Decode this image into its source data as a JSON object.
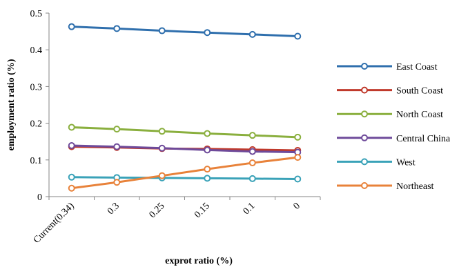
{
  "chart_data": {
    "type": "line",
    "title": "",
    "xlabel": "exprot ratio (%)",
    "ylabel": "employment ratio (%)",
    "categories": [
      "Current(0.34)",
      "0.3",
      "0.25",
      "0.15",
      "0.1",
      "0"
    ],
    "ylim": [
      0,
      0.5
    ],
    "yticks": [
      0,
      0.1,
      0.2,
      0.3,
      0.4,
      0.5
    ],
    "ytick_labels": [
      "0",
      "0.1",
      "0.2",
      "0.3",
      "0.4",
      "0.5"
    ],
    "grid": false,
    "legend_position": "right",
    "series": [
      {
        "name": "East Coast",
        "color": "#2f6fad",
        "values": [
          0.463,
          0.458,
          0.452,
          0.447,
          0.442,
          0.437
        ]
      },
      {
        "name": "South Coast",
        "color": "#c0392b",
        "values": [
          0.136,
          0.134,
          0.131,
          0.13,
          0.128,
          0.126
        ]
      },
      {
        "name": "North Coast",
        "color": "#8aaf3e",
        "values": [
          0.189,
          0.184,
          0.178,
          0.172,
          0.167,
          0.162
        ]
      },
      {
        "name": "Central China",
        "color": "#6e4a9a",
        "values": [
          0.139,
          0.136,
          0.132,
          0.127,
          0.123,
          0.121
        ]
      },
      {
        "name": "West",
        "color": "#3aa2b8",
        "values": [
          0.053,
          0.052,
          0.051,
          0.05,
          0.049,
          0.048
        ]
      },
      {
        "name": "Northeast",
        "color": "#e8823a",
        "values": [
          0.023,
          0.039,
          0.057,
          0.075,
          0.092,
          0.107
        ]
      }
    ]
  }
}
